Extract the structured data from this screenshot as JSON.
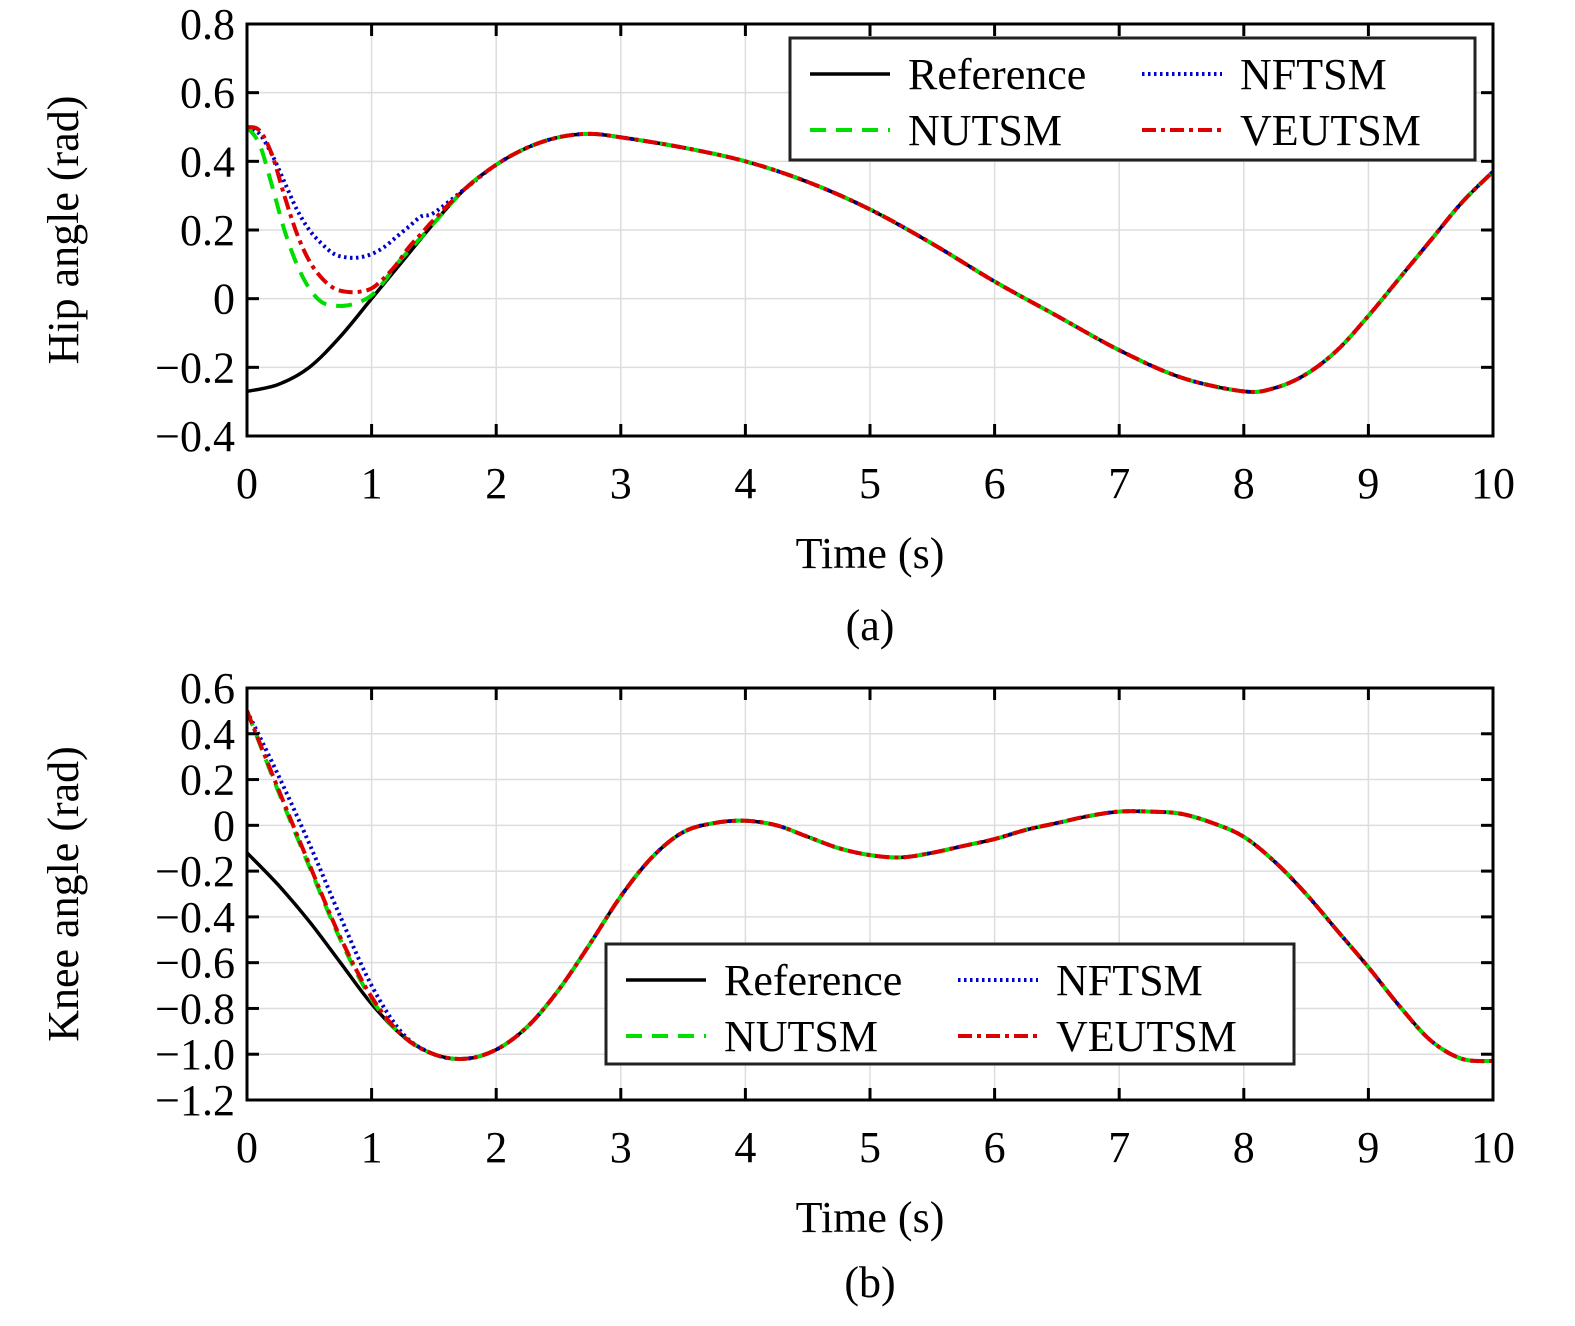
{
  "chart_data": [
    {
      "type": "line",
      "caption": "(a)",
      "title": "",
      "xlabel": "Time (s)",
      "ylabel": "Hip angle (rad)",
      "xlim": [
        0,
        10
      ],
      "ylim": [
        -0.4,
        0.8
      ],
      "xticks": [
        0,
        1,
        2,
        3,
        4,
        5,
        6,
        7,
        8,
        9,
        10
      ],
      "xtick_labels": [
        "0",
        "1",
        "2",
        "3",
        "4",
        "5",
        "6",
        "7",
        "8",
        "9",
        "10"
      ],
      "yticks": [
        -0.4,
        -0.2,
        0,
        0.2,
        0.4,
        0.6,
        0.8
      ],
      "ytick_labels": [
        "−0.4",
        "−0.2",
        "0",
        "0.2",
        "0.4",
        "0.6",
        "0.8"
      ],
      "grid": true,
      "legend": {
        "position": "top-right",
        "columns": 2,
        "order": [
          "Reference",
          "NFTSM",
          "NUTSM",
          "VEUTSM"
        ]
      },
      "series": [
        {
          "name": "Reference",
          "color": "#000000",
          "style": "solid",
          "x": [
            0,
            0.25,
            0.5,
            0.75,
            1,
            1.25,
            1.5,
            1.75,
            2,
            2.25,
            2.5,
            2.75,
            3,
            3.5,
            4,
            4.5,
            5,
            5.5,
            6,
            6.5,
            7,
            7.5,
            8,
            8.25,
            8.5,
            8.75,
            9,
            9.25,
            9.5,
            9.75,
            10
          ],
          "y": [
            -0.27,
            -0.25,
            -0.2,
            -0.11,
            0,
            0.11,
            0.22,
            0.32,
            0.39,
            0.44,
            0.47,
            0.48,
            0.47,
            0.44,
            0.4,
            0.34,
            0.26,
            0.16,
            0.05,
            -0.05,
            -0.15,
            -0.23,
            -0.27,
            -0.26,
            -0.22,
            -0.15,
            -0.05,
            0.06,
            0.17,
            0.28,
            0.37
          ]
        },
        {
          "name": "NFTSM",
          "color": "#0000cc",
          "style": "dotted",
          "x": [
            0,
            0.1,
            0.2,
            0.3,
            0.4,
            0.5,
            0.6,
            0.7,
            0.8,
            0.9,
            1,
            1.1,
            1.2,
            1.3,
            1.4,
            1.5,
            1.75,
            2,
            2.25,
            2.5,
            2.75,
            3,
            3.5,
            4,
            4.5,
            5,
            5.5,
            6,
            6.5,
            7,
            7.5,
            8,
            8.25,
            8.5,
            8.75,
            9,
            9.25,
            9.5,
            9.75,
            10
          ],
          "y": [
            0.5,
            0.48,
            0.42,
            0.34,
            0.26,
            0.2,
            0.16,
            0.13,
            0.12,
            0.12,
            0.13,
            0.15,
            0.18,
            0.21,
            0.24,
            0.25,
            0.32,
            0.39,
            0.44,
            0.47,
            0.48,
            0.47,
            0.44,
            0.4,
            0.34,
            0.26,
            0.16,
            0.05,
            -0.05,
            -0.15,
            -0.23,
            -0.27,
            -0.26,
            -0.22,
            -0.15,
            -0.05,
            0.06,
            0.17,
            0.28,
            0.37
          ]
        },
        {
          "name": "NUTSM",
          "color": "#00dd00",
          "style": "dashed",
          "x": [
            0,
            0.1,
            0.2,
            0.3,
            0.4,
            0.5,
            0.6,
            0.7,
            0.8,
            0.9,
            1,
            1.1,
            1.2,
            1.3,
            1.4,
            1.5,
            1.75,
            2,
            2.25,
            2.5,
            2.75,
            3,
            3.5,
            4,
            4.5,
            5,
            5.5,
            6,
            6.5,
            7,
            7.5,
            8,
            8.25,
            8.5,
            8.75,
            9,
            9.25,
            9.5,
            9.75,
            10
          ],
          "y": [
            0.5,
            0.45,
            0.33,
            0.2,
            0.1,
            0.03,
            -0.01,
            -0.02,
            -0.02,
            -0.01,
            0.01,
            0.05,
            0.1,
            0.14,
            0.18,
            0.22,
            0.32,
            0.39,
            0.44,
            0.47,
            0.48,
            0.47,
            0.44,
            0.4,
            0.34,
            0.26,
            0.16,
            0.05,
            -0.05,
            -0.15,
            -0.23,
            -0.27,
            -0.26,
            -0.22,
            -0.15,
            -0.05,
            0.06,
            0.17,
            0.28,
            0.37
          ]
        },
        {
          "name": "VEUTSM",
          "color": "#dd0000",
          "style": "dashdot",
          "x": [
            0,
            0.1,
            0.2,
            0.3,
            0.4,
            0.5,
            0.6,
            0.7,
            0.8,
            0.9,
            1,
            1.1,
            1.2,
            1.3,
            1.4,
            1.5,
            1.75,
            2,
            2.25,
            2.5,
            2.75,
            3,
            3.5,
            4,
            4.5,
            5,
            5.5,
            6,
            6.5,
            7,
            7.5,
            8,
            8.25,
            8.5,
            8.75,
            9,
            9.25,
            9.5,
            9.75,
            10
          ],
          "y": [
            0.5,
            0.49,
            0.42,
            0.3,
            0.19,
            0.11,
            0.06,
            0.03,
            0.02,
            0.02,
            0.03,
            0.06,
            0.1,
            0.15,
            0.19,
            0.23,
            0.32,
            0.39,
            0.44,
            0.47,
            0.48,
            0.47,
            0.44,
            0.4,
            0.34,
            0.26,
            0.16,
            0.05,
            -0.05,
            -0.15,
            -0.23,
            -0.27,
            -0.26,
            -0.22,
            -0.15,
            -0.05,
            0.06,
            0.17,
            0.28,
            0.37
          ]
        }
      ]
    },
    {
      "type": "line",
      "caption": "(b)",
      "title": "",
      "xlabel": "Time (s)",
      "ylabel": "Knee angle (rad)",
      "xlim": [
        0,
        10
      ],
      "ylim": [
        -1.2,
        0.6
      ],
      "xticks": [
        0,
        1,
        2,
        3,
        4,
        5,
        6,
        7,
        8,
        9,
        10
      ],
      "xtick_labels": [
        "0",
        "1",
        "2",
        "3",
        "4",
        "5",
        "6",
        "7",
        "8",
        "9",
        "10"
      ],
      "yticks": [
        -1.2,
        -1.0,
        -0.8,
        -0.6,
        -0.4,
        -0.2,
        0,
        0.2,
        0.4,
        0.6
      ],
      "ytick_labels": [
        "−1.2",
        "−1.0",
        "−0.8",
        "−0.6",
        "−0.4",
        "−0.2",
        "0",
        "0.2",
        "0.4",
        "0.6"
      ],
      "grid": true,
      "legend": {
        "position": "lower-center",
        "columns": 2,
        "order": [
          "Reference",
          "NFTSM",
          "NUTSM",
          "VEUTSM"
        ]
      },
      "series": [
        {
          "name": "Reference",
          "color": "#000000",
          "style": "solid",
          "x": [
            0,
            0.25,
            0.5,
            0.75,
            1,
            1.25,
            1.5,
            1.75,
            2,
            2.25,
            2.5,
            2.75,
            3,
            3.25,
            3.5,
            3.75,
            4,
            4.25,
            4.5,
            4.75,
            5,
            5.25,
            5.5,
            5.75,
            6,
            6.25,
            6.5,
            6.75,
            7,
            7.25,
            7.5,
            7.75,
            8,
            8.25,
            8.5,
            8.75,
            9,
            9.25,
            9.5,
            9.75,
            10
          ],
          "y": [
            -0.12,
            -0.26,
            -0.42,
            -0.6,
            -0.78,
            -0.92,
            -1.0,
            -1.02,
            -0.98,
            -0.88,
            -0.72,
            -0.52,
            -0.31,
            -0.14,
            -0.03,
            0.01,
            0.02,
            0.0,
            -0.05,
            -0.1,
            -0.13,
            -0.14,
            -0.12,
            -0.09,
            -0.06,
            -0.02,
            0.01,
            0.04,
            0.06,
            0.06,
            0.05,
            0.01,
            -0.05,
            -0.16,
            -0.3,
            -0.46,
            -0.62,
            -0.79,
            -0.94,
            -1.02,
            -1.03
          ]
        },
        {
          "name": "NFTSM",
          "color": "#0000cc",
          "style": "dotted",
          "x": [
            0,
            0.25,
            0.5,
            0.75,
            1,
            1.25,
            1.5,
            1.75,
            2,
            2.25,
            2.5,
            2.75,
            3,
            3.25,
            3.5,
            3.75,
            4,
            4.25,
            4.5,
            4.75,
            5,
            5.25,
            5.5,
            5.75,
            6,
            6.25,
            6.5,
            6.75,
            7,
            7.25,
            7.5,
            7.75,
            8,
            8.25,
            8.5,
            8.75,
            9,
            9.25,
            9.5,
            9.75,
            10
          ],
          "y": [
            0.5,
            0.22,
            -0.08,
            -0.4,
            -0.7,
            -0.91,
            -1.0,
            -1.02,
            -0.98,
            -0.88,
            -0.72,
            -0.52,
            -0.31,
            -0.14,
            -0.03,
            0.01,
            0.02,
            0.0,
            -0.05,
            -0.1,
            -0.13,
            -0.14,
            -0.12,
            -0.09,
            -0.06,
            -0.02,
            0.01,
            0.04,
            0.06,
            0.06,
            0.05,
            0.01,
            -0.05,
            -0.16,
            -0.3,
            -0.46,
            -0.62,
            -0.79,
            -0.94,
            -1.02,
            -1.03
          ]
        },
        {
          "name": "NUTSM",
          "color": "#00dd00",
          "style": "dashed",
          "x": [
            0,
            0.25,
            0.5,
            0.75,
            1,
            1.25,
            1.5,
            1.75,
            2,
            2.25,
            2.5,
            2.75,
            3,
            3.25,
            3.5,
            3.75,
            4,
            4.25,
            4.5,
            4.75,
            5,
            5.25,
            5.5,
            5.75,
            6,
            6.25,
            6.5,
            6.75,
            7,
            7.25,
            7.5,
            7.75,
            8,
            8.25,
            8.5,
            8.75,
            9,
            9.25,
            9.5,
            9.75,
            10
          ],
          "y": [
            0.5,
            0.15,
            -0.18,
            -0.5,
            -0.76,
            -0.92,
            -1.0,
            -1.02,
            -0.98,
            -0.88,
            -0.72,
            -0.52,
            -0.31,
            -0.14,
            -0.03,
            0.01,
            0.02,
            0.0,
            -0.05,
            -0.1,
            -0.13,
            -0.14,
            -0.12,
            -0.09,
            -0.06,
            -0.02,
            0.01,
            0.04,
            0.06,
            0.06,
            0.05,
            0.01,
            -0.05,
            -0.16,
            -0.3,
            -0.46,
            -0.62,
            -0.79,
            -0.94,
            -1.02,
            -1.03
          ]
        },
        {
          "name": "VEUTSM",
          "color": "#dd0000",
          "style": "dashdot",
          "x": [
            0,
            0.25,
            0.5,
            0.75,
            1,
            1.25,
            1.5,
            1.75,
            2,
            2.25,
            2.5,
            2.75,
            3,
            3.25,
            3.5,
            3.75,
            4,
            4.25,
            4.5,
            4.75,
            5,
            5.25,
            5.5,
            5.75,
            6,
            6.25,
            6.5,
            6.75,
            7,
            7.25,
            7.5,
            7.75,
            8,
            8.25,
            8.5,
            8.75,
            9,
            9.25,
            9.5,
            9.75,
            10
          ],
          "y": [
            0.5,
            0.16,
            -0.17,
            -0.49,
            -0.75,
            -0.92,
            -1.0,
            -1.02,
            -0.98,
            -0.88,
            -0.72,
            -0.52,
            -0.31,
            -0.14,
            -0.03,
            0.01,
            0.02,
            0.0,
            -0.05,
            -0.1,
            -0.13,
            -0.14,
            -0.12,
            -0.09,
            -0.06,
            -0.02,
            0.01,
            0.04,
            0.06,
            0.06,
            0.05,
            0.01,
            -0.05,
            -0.16,
            -0.3,
            -0.46,
            -0.62,
            -0.79,
            -0.94,
            -1.02,
            -1.03
          ]
        }
      ]
    }
  ]
}
